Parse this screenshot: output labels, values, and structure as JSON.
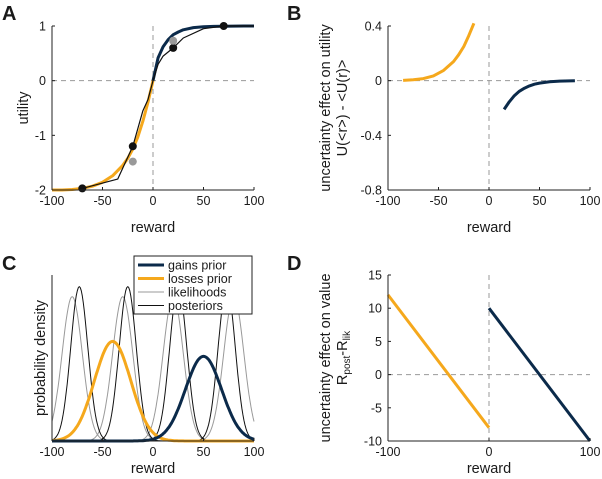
{
  "colors": {
    "gains": "#0b2a4a",
    "losses": "#f5a81c",
    "black": "#111111",
    "grey": "#999999",
    "dash": "#9a9a9a"
  },
  "chart_data": [
    {
      "panel": "A",
      "type": "line",
      "xlabel": "reward",
      "ylabel": "utility",
      "xlim": [
        -100,
        100
      ],
      "ylim": [
        -2,
        1
      ],
      "xticks": [
        "-100",
        "-50",
        "0",
        "50",
        "100"
      ],
      "yticks": [
        "1",
        "0",
        "-1",
        "-2"
      ],
      "reference_lines": {
        "x": 0,
        "y": 0,
        "style": "dashed"
      },
      "series": [
        {
          "color": "gains",
          "points": [
            [
              0,
              0
            ],
            [
              5,
              0.42
            ],
            [
              10,
              0.62
            ],
            [
              15,
              0.75
            ],
            [
              20,
              0.84
            ],
            [
              25,
              0.89
            ],
            [
              30,
              0.93
            ],
            [
              40,
              0.97
            ],
            [
              50,
              0.985
            ],
            [
              60,
              0.993
            ],
            [
              70,
              0.997
            ],
            [
              80,
              0.999
            ],
            [
              90,
              1
            ],
            [
              100,
              1
            ]
          ]
        },
        {
          "color": "losses",
          "points": [
            [
              -100,
              -2
            ],
            [
              -90,
              -2
            ],
            [
              -80,
              -1.99
            ],
            [
              -70,
              -1.97
            ],
            [
              -60,
              -1.93
            ],
            [
              -50,
              -1.86
            ],
            [
              -40,
              -1.74
            ],
            [
              -30,
              -1.55
            ],
            [
              -25,
              -1.42
            ],
            [
              -20,
              -1.25
            ],
            [
              -15,
              -1.03
            ],
            [
              -10,
              -0.74
            ],
            [
              -5,
              -0.4
            ],
            [
              0,
              0
            ]
          ]
        },
        {
          "color": "black",
          "points": [
            [
              -70,
              -1.97
            ],
            [
              -35,
              -1.8
            ],
            [
              -20,
              -1.2
            ],
            [
              -10,
              -0.55
            ],
            [
              -5,
              -0.35
            ],
            [
              0,
              0
            ],
            [
              5,
              0.3
            ],
            [
              10,
              0.45
            ],
            [
              20,
              0.6
            ],
            [
              30,
              0.78
            ],
            [
              50,
              0.95
            ],
            [
              70,
              1
            ],
            [
              100,
              1
            ]
          ]
        }
      ],
      "markers": [
        {
          "x": -70,
          "y": -1.97,
          "color": "black"
        },
        {
          "x": -20,
          "y": -1.2,
          "color": "black"
        },
        {
          "x": -20,
          "y": -1.48,
          "color": "grey"
        },
        {
          "x": 20,
          "y": 0.6,
          "color": "black"
        },
        {
          "x": 20,
          "y": 0.73,
          "color": "grey"
        },
        {
          "x": 70,
          "y": 1.0,
          "color": "black"
        }
      ]
    },
    {
      "panel": "B",
      "type": "line",
      "xlabel": "reward",
      "ylabel": "uncertainty effect on utility",
      "ylabel2": "U(<r>) - <U(r)>",
      "xlim": [
        -100,
        100
      ],
      "ylim": [
        -0.8,
        0.4
      ],
      "xticks": [
        "-100",
        "-50",
        "0",
        "50",
        "100"
      ],
      "yticks": [
        "0.4",
        "0",
        "-0.4",
        "-0.8"
      ],
      "reference_lines": {
        "x": 0,
        "y": 0,
        "style": "dashed"
      },
      "series": [
        {
          "color": "losses",
          "points": [
            [
              -85,
              0.002
            ],
            [
              -75,
              0.006
            ],
            [
              -65,
              0.015
            ],
            [
              -55,
              0.035
            ],
            [
              -45,
              0.075
            ],
            [
              -35,
              0.14
            ],
            [
              -30,
              0.19
            ],
            [
              -25,
              0.25
            ],
            [
              -20,
              0.33
            ],
            [
              -15,
              0.42
            ]
          ]
        },
        {
          "color": "gains",
          "points": [
            [
              15,
              -0.21
            ],
            [
              20,
              -0.155
            ],
            [
              25,
              -0.11
            ],
            [
              30,
              -0.078
            ],
            [
              35,
              -0.055
            ],
            [
              40,
              -0.038
            ],
            [
              45,
              -0.026
            ],
            [
              50,
              -0.018
            ],
            [
              60,
              -0.008
            ],
            [
              70,
              -0.003
            ],
            [
              85,
              0
            ]
          ]
        }
      ]
    },
    {
      "panel": "C",
      "type": "line",
      "xlabel": "reward",
      "ylabel": "probability density",
      "xlim": [
        -100,
        100
      ],
      "xticks": [
        "-100",
        "-50",
        "0",
        "50",
        "100"
      ],
      "legend": {
        "position": "top-right",
        "entries": [
          {
            "label": "gains prior",
            "color": "gains",
            "width": 3
          },
          {
            "label": "losses prior",
            "color": "losses",
            "width": 3
          },
          {
            "label": "likelihoods",
            "color": "grey",
            "width": 1
          },
          {
            "label": "posteriors",
            "color": "black",
            "width": 1
          }
        ]
      },
      "series": [
        {
          "color": "gains",
          "kind": "gaussian",
          "mu": 50,
          "sigma": 18,
          "peak": 0.51,
          "width": 3
        },
        {
          "color": "losses",
          "kind": "gaussian",
          "mu": -40,
          "sigma": 18,
          "peak": 0.6,
          "width": 3
        },
        {
          "color": "grey",
          "kind": "gaussian",
          "mu": -80,
          "sigma": 10,
          "peak": 0.87,
          "width": 1
        },
        {
          "color": "grey",
          "kind": "gaussian",
          "mu": -30,
          "sigma": 10,
          "peak": 0.87,
          "width": 1
        },
        {
          "color": "grey",
          "kind": "gaussian",
          "mu": 20,
          "sigma": 10,
          "peak": 0.87,
          "width": 1
        },
        {
          "color": "grey",
          "kind": "gaussian",
          "mu": 80,
          "sigma": 10,
          "peak": 0.87,
          "width": 1
        },
        {
          "color": "black",
          "kind": "gaussian",
          "mu": -73,
          "sigma": 8.5,
          "peak": 0.93,
          "width": 1
        },
        {
          "color": "black",
          "kind": "gaussian",
          "mu": -25,
          "sigma": 8.5,
          "peak": 0.93,
          "width": 1
        },
        {
          "color": "black",
          "kind": "gaussian",
          "mu": 25,
          "sigma": 8.5,
          "peak": 0.93,
          "width": 1
        },
        {
          "color": "black",
          "kind": "gaussian",
          "mu": 73,
          "sigma": 8.5,
          "peak": 0.93,
          "width": 1
        }
      ]
    },
    {
      "panel": "D",
      "type": "line",
      "xlabel": "reward",
      "ylabel": "uncertainty effect on value",
      "ylabel2": "R",
      "ylabel2_sub1": "post",
      "ylabel2_mid": "-R",
      "ylabel2_sub2": "lik",
      "xlim": [
        -100,
        100
      ],
      "ylim": [
        -10,
        15
      ],
      "xticks": [
        "-100",
        "0",
        "100"
      ],
      "yticks": [
        "15",
        "10",
        "5",
        "0",
        "-5",
        "-10"
      ],
      "reference_lines": {
        "x": 0,
        "y": 0,
        "style": "dashed"
      },
      "series": [
        {
          "color": "losses",
          "points": [
            [
              -100,
              12
            ],
            [
              0,
              -8
            ]
          ]
        },
        {
          "color": "gains",
          "points": [
            [
              0,
              10
            ],
            [
              100,
              -10
            ]
          ]
        }
      ]
    }
  ],
  "panel_labels": {
    "A": "A",
    "B": "B",
    "C": "C",
    "D": "D"
  }
}
